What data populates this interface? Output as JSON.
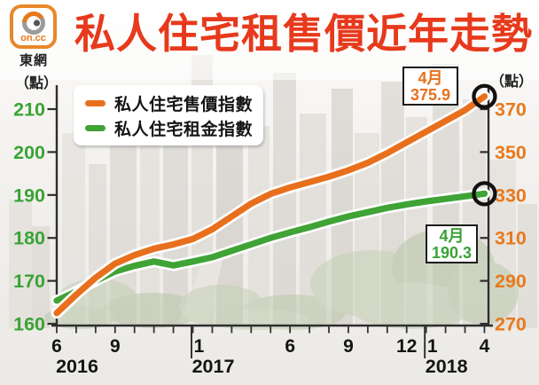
{
  "brand": {
    "logo_text": "on.cc",
    "site_name": "東網"
  },
  "title": "私人住宅租售價近年走勢",
  "colors": {
    "title": "#e7391c",
    "sale_line": "#e8701d",
    "rent_line": "#3fa336",
    "left_axis_labels": "#3aa335",
    "right_axis_labels": "#e8791c",
    "axis_ink": "#2e2e2e",
    "text_ink": "#141414",
    "marker_ring": "#111111"
  },
  "legend": [
    {
      "label": "私人住宅售價指數",
      "color": "#e8701d"
    },
    {
      "label": "私人住宅租金指數",
      "color": "#3fa336"
    }
  ],
  "chart_data": {
    "type": "line",
    "title": "私人住宅租售價近年走勢",
    "x": [
      "2016-06",
      "2016-07",
      "2016-08",
      "2016-09",
      "2016-10",
      "2016-11",
      "2016-12",
      "2017-01",
      "2017-02",
      "2017-03",
      "2017-04",
      "2017-05",
      "2017-06",
      "2017-07",
      "2017-08",
      "2017-09",
      "2017-10",
      "2017-11",
      "2017-12",
      "2018-01",
      "2018-02",
      "2018-03",
      "2018-04"
    ],
    "series": [
      {
        "name": "私人住宅售價指數",
        "axis": "right",
        "color": "#e8701d",
        "values": [
          275.0,
          283.5,
          291.5,
          298.0,
          302.0,
          305.0,
          307.0,
          309.5,
          314.0,
          320.0,
          326.0,
          330.5,
          333.5,
          336.0,
          338.5,
          341.5,
          345.0,
          349.5,
          354.5,
          359.5,
          364.5,
          369.5,
          375.9
        ]
      },
      {
        "name": "私人住宅租金指數",
        "axis": "left",
        "color": "#3fa336",
        "values": [
          165.4,
          167.5,
          170.0,
          172.2,
          173.5,
          174.5,
          173.6,
          174.5,
          175.5,
          177.0,
          178.5,
          180.0,
          181.3,
          182.5,
          183.8,
          185.0,
          186.0,
          187.0,
          187.8,
          188.5,
          189.1,
          189.7,
          190.3
        ]
      }
    ],
    "left_axis": {
      "label": "（點）",
      "min": 160,
      "max": 210,
      "ticks": [
        160,
        170,
        180,
        190,
        200,
        210
      ],
      "color": "#3aa335"
    },
    "right_axis": {
      "label": "（點）",
      "min": 270,
      "max": 370,
      "ticks": [
        270,
        290,
        310,
        330,
        350,
        370
      ],
      "color": "#e8791c"
    },
    "x_tick_labels": [
      {
        "index": 0,
        "label": "6",
        "year": "2016"
      },
      {
        "index": 3,
        "label": "9"
      },
      {
        "index": 7,
        "label": "1",
        "year": "2017",
        "separator": true
      },
      {
        "index": 12,
        "label": "6"
      },
      {
        "index": 15,
        "label": "9"
      },
      {
        "index": 18,
        "label": "12"
      },
      {
        "index": 19,
        "label": "1",
        "year": "2018",
        "separator": true
      },
      {
        "index": 22,
        "label": "4"
      }
    ],
    "annotations": [
      {
        "series": "私人住宅售價指數",
        "month_label": "4月",
        "value_label": "375.9",
        "color": "#e8701d"
      },
      {
        "series": "私人住宅租金指數",
        "month_label": "4月",
        "value_label": "190.3",
        "color": "#3aa335"
      }
    ],
    "endpoint_marker": "black-circle-outline",
    "grid": "off",
    "legend_position": "top-left-inside",
    "background": "faded-hong-kong-cityscape-photo"
  }
}
